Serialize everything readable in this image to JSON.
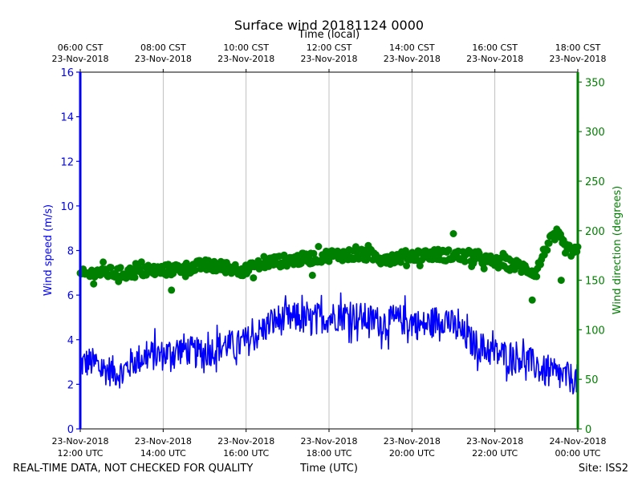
{
  "chart_data": {
    "type": "line+scatter",
    "title": "Surface wind 20181124 0000",
    "top_axis": {
      "label": "Time (local)",
      "ticks": [
        {
          "hour": 0,
          "line1": "06:00 CST",
          "line2": "23-Nov-2018"
        },
        {
          "hour": 2,
          "line1": "08:00 CST",
          "line2": "23-Nov-2018"
        },
        {
          "hour": 4,
          "line1": "10:00 CST",
          "line2": "23-Nov-2018"
        },
        {
          "hour": 6,
          "line1": "12:00 CST",
          "line2": "23-Nov-2018"
        },
        {
          "hour": 8,
          "line1": "14:00 CST",
          "line2": "23-Nov-2018"
        },
        {
          "hour": 10,
          "line1": "16:00 CST",
          "line2": "23-Nov-2018"
        },
        {
          "hour": 12,
          "line1": "18:00 CST",
          "line2": "23-Nov-2018"
        }
      ]
    },
    "bottom_axis": {
      "label": "Time (UTC)",
      "range_hours": [
        0,
        12
      ],
      "ticks": [
        {
          "hour": 0,
          "line1": "23-Nov-2018",
          "line2": "12:00 UTC"
        },
        {
          "hour": 2,
          "line1": "23-Nov-2018",
          "line2": "14:00 UTC"
        },
        {
          "hour": 4,
          "line1": "23-Nov-2018",
          "line2": "16:00 UTC"
        },
        {
          "hour": 6,
          "line1": "23-Nov-2018",
          "line2": "18:00 UTC"
        },
        {
          "hour": 8,
          "line1": "23-Nov-2018",
          "line2": "20:00 UTC"
        },
        {
          "hour": 10,
          "line1": "23-Nov-2018",
          "line2": "22:00 UTC"
        },
        {
          "hour": 12,
          "line1": "24-Nov-2018",
          "line2": "00:00 UTC"
        }
      ]
    },
    "left_axis": {
      "label": "Wind speed (m/s)",
      "ylim": [
        0,
        16
      ],
      "ticks": [
        0,
        2,
        4,
        6,
        8,
        10,
        12,
        14,
        16
      ],
      "color": "#0000ff"
    },
    "right_axis": {
      "label": "Wind direction (degrees)",
      "ylim": [
        0,
        360
      ],
      "ticks": [
        0,
        50,
        100,
        150,
        200,
        250,
        300,
        350
      ],
      "color": "#008000"
    },
    "grid": "vertical",
    "series": [
      {
        "name": "Wind speed",
        "axis": "left",
        "style": "line",
        "color": "#0000ff",
        "x_hours": [
          0,
          0.25,
          0.5,
          0.75,
          1,
          1.25,
          1.5,
          1.75,
          2,
          2.25,
          2.5,
          2.75,
          3,
          3.25,
          3.5,
          3.75,
          4,
          4.25,
          4.5,
          4.75,
          5,
          5.25,
          5.5,
          5.75,
          6,
          6.25,
          6.5,
          6.75,
          7,
          7.25,
          7.5,
          7.75,
          8,
          8.25,
          8.5,
          8.75,
          9,
          9.25,
          9.5,
          9.75,
          10,
          10.25,
          10.5,
          10.75,
          11,
          11.25,
          11.5,
          11.75,
          12
        ],
        "values": [
          2.9,
          3.0,
          2.7,
          2.6,
          2.5,
          3.0,
          3.2,
          3.3,
          3.3,
          3.5,
          3.6,
          3.4,
          3.4,
          3.6,
          3.8,
          3.7,
          3.9,
          4.2,
          4.6,
          4.9,
          4.9,
          5.0,
          4.8,
          5.0,
          5.0,
          5.1,
          5.1,
          5.0,
          4.9,
          4.8,
          4.8,
          4.9,
          4.8,
          4.6,
          4.8,
          5.0,
          4.6,
          4.2,
          3.8,
          3.6,
          3.4,
          3.3,
          3.3,
          3.1,
          2.8,
          2.5,
          2.4,
          2.3,
          2.2
        ],
        "noise": 0.7
      },
      {
        "name": "Wind direction",
        "axis": "right",
        "style": "scatter",
        "color": "#008000",
        "x_hours": [
          0,
          0.5,
          1,
          1.5,
          2,
          2.5,
          3,
          3.5,
          4,
          4.5,
          5,
          5.5,
          6,
          6.5,
          7,
          7.5,
          8,
          8.5,
          9,
          9.5,
          10,
          10.5,
          11,
          11.25,
          11.5,
          11.75,
          12
        ],
        "values": [
          155,
          158,
          157,
          159,
          160,
          162,
          165,
          163,
          160,
          168,
          170,
          172,
          175,
          176,
          175,
          172,
          175,
          176,
          175,
          173,
          168,
          165,
          158,
          185,
          196,
          180,
          178
        ],
        "noise": 6,
        "outliers": [
          {
            "x": 2.2,
            "value": 140
          },
          {
            "x": 10.9,
            "value": 130
          },
          {
            "x": 11.6,
            "value": 150
          },
          {
            "x": 5.6,
            "value": 155
          },
          {
            "x": 9.0,
            "value": 197
          }
        ]
      }
    ]
  },
  "footer": {
    "disclaimer": "REAL-TIME DATA, NOT CHECKED FOR QUALITY",
    "axis_label": "Time (UTC)",
    "site": "Site: ISS2"
  }
}
